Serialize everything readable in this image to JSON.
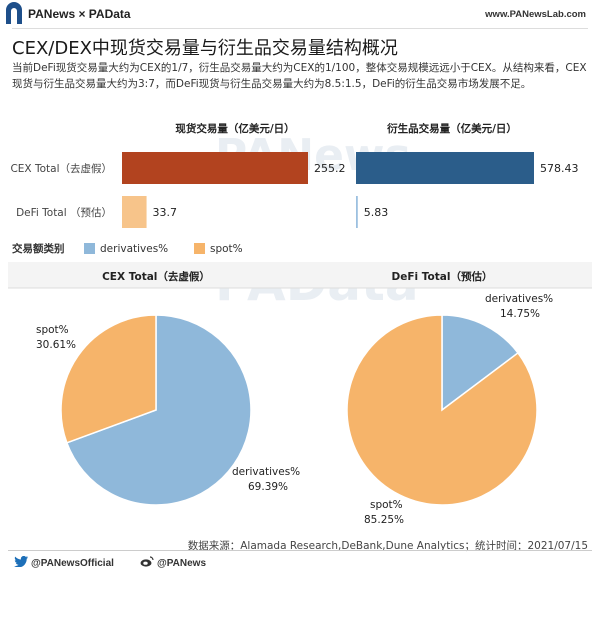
{
  "header": {
    "brand": "PANews × PAData",
    "url": "www.PANewsLab.com"
  },
  "title": "CEX/DEX中现货交易量与衍生品交易量结构概况",
  "subtitle": "当前DeFi现货交易量大约为CEX的1/7，衍生品交易量大约为CEX的1/100，整体交易规模远远小于CEX。从结构来看，CEX现货与衍生品交易量大约为3:7，而DeFi现货与衍生品交易量大约为8.5:1.5，DeFi的衍生品交易市场发展不足。",
  "watermarks": [
    "PANews",
    "PAData"
  ],
  "colors": {
    "spot_bar": "#b2431f",
    "spot_bar_light": "#f7c48a",
    "derivatives_bar": "#2b5d8a",
    "derivatives_bar_light": "#9cc0e0",
    "pie_derivatives": "#8fb8da",
    "pie_spot": "#f6b46a"
  },
  "chart_data": [
    {
      "type": "bar",
      "categories": [
        "CEX Total（去虚假）",
        "DeFi Total （预估）"
      ],
      "series": [
        {
          "name": "现货交易量（亿美元/日）",
          "values": [
            255.2,
            33.7
          ],
          "labels": [
            "255.2",
            "33.7"
          ]
        },
        {
          "name": "衍生品交易量（亿美元/日）",
          "values": [
            578.43,
            5.83
          ],
          "labels": [
            "578.43",
            "5.83"
          ]
        }
      ]
    },
    {
      "type": "pie",
      "title": "CEX Total（去虚假）",
      "slices": [
        {
          "name": "derivatives%",
          "value": 69.39,
          "label": "69.39%"
        },
        {
          "name": "spot%",
          "value": 30.61,
          "label": "30.61%"
        }
      ]
    },
    {
      "type": "pie",
      "title": "DeFi Total（预估）",
      "slices": [
        {
          "name": "derivatives%",
          "value": 14.75,
          "label": "14.75%"
        },
        {
          "name": "spot%",
          "value": 85.25,
          "label": "85.25%"
        }
      ]
    }
  ],
  "legend": {
    "title": "交易额类别",
    "items": [
      "derivatives%",
      "spot%"
    ]
  },
  "source": "数据来源：Alamada Research,DeBank,Dune Analytics；统计时间：2021/07/15",
  "footer": {
    "weibo_official": "@PANewsOfficial",
    "weibo": "@PANews"
  }
}
